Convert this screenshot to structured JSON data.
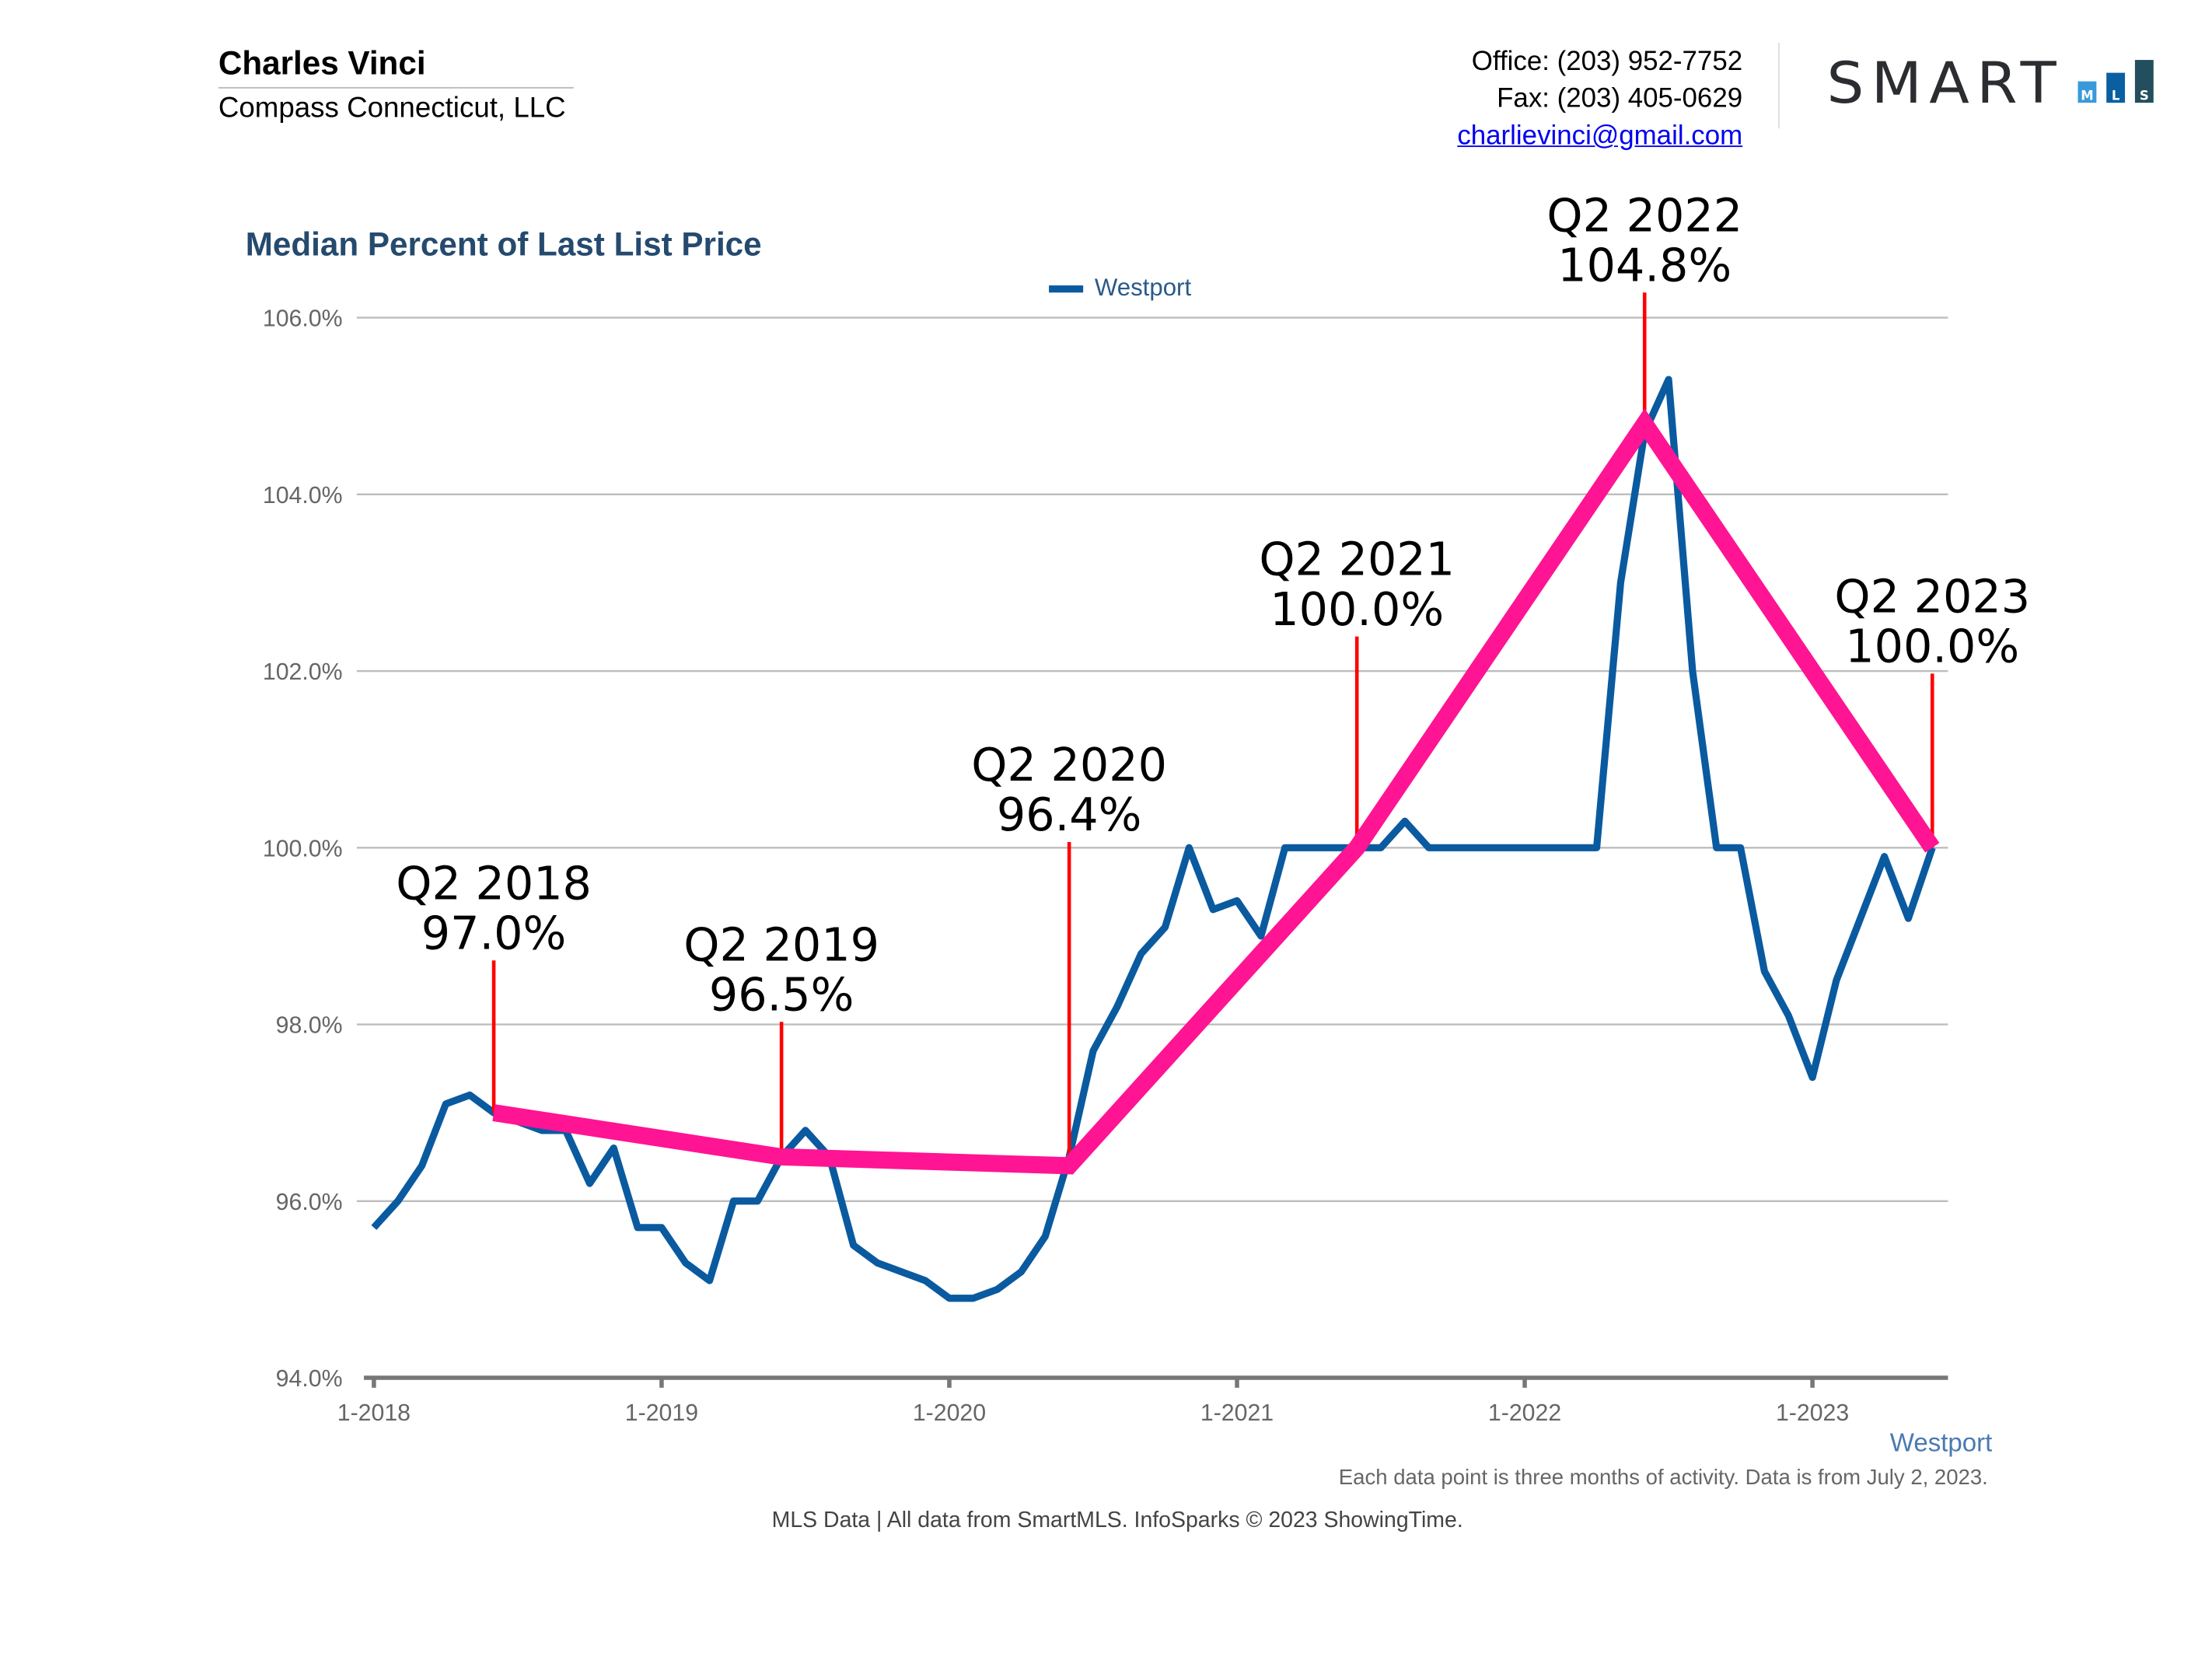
{
  "header": {
    "agent_name": "Charles Vinci",
    "company": "Compass Connecticut, LLC",
    "office": "Office: (203) 952-7752",
    "fax": "Fax: (203) 405-0629",
    "email": "charlievinci@gmail.com",
    "logo": {
      "text": "SMART",
      "sub_letters": [
        "M",
        "L",
        "S"
      ],
      "colors": [
        "#3a9ad9",
        "#0a5fa0",
        "#234e5e"
      ],
      "text_color": "#2b2d30"
    }
  },
  "chart_data": {
    "type": "line",
    "title": "Median Percent of Last List Price",
    "legend": {
      "entries": [
        "Westport"
      ],
      "placement": "top-center"
    },
    "xlabel": "",
    "ylabel": "",
    "x_tick_labels": [
      "1-2018",
      "1-2019",
      "1-2020",
      "1-2021",
      "1-2022",
      "1-2023"
    ],
    "y_tick_labels": [
      "94.0%",
      "96.0%",
      "98.0%",
      "100.0%",
      "102.0%",
      "104.0%",
      "106.0%"
    ],
    "ylim": [
      94,
      106
    ],
    "grid": true,
    "x_start": "1-2018",
    "x_frequency": "monthly",
    "series": [
      {
        "name": "Westport",
        "color": "#0a5aa0",
        "values": [
          95.7,
          96.0,
          96.4,
          97.1,
          97.2,
          97.0,
          96.9,
          96.8,
          96.8,
          96.2,
          96.6,
          95.7,
          95.7,
          95.3,
          95.1,
          96.0,
          96.0,
          96.5,
          96.8,
          96.5,
          95.5,
          95.3,
          95.2,
          95.1,
          94.9,
          94.9,
          95.0,
          95.2,
          95.6,
          96.5,
          97.7,
          98.2,
          98.8,
          99.1,
          100.0,
          99.3,
          99.4,
          99.0,
          100.0,
          100.0,
          100.0,
          100.0,
          100.0,
          100.3,
          100.0,
          100.0,
          100.0,
          100.0,
          100.0,
          100.0,
          100.0,
          100.0,
          103.0,
          104.7,
          105.3,
          102.0,
          100.0,
          100.0,
          98.6,
          98.1,
          97.4,
          98.5,
          99.2,
          99.9,
          99.2,
          100.0
        ]
      }
    ],
    "overlay": {
      "color": "#ff1493",
      "stem_color": "#ff0000",
      "points": [
        {
          "period": "Q2 2018",
          "month": "6-2018",
          "value": 97.0,
          "label": "97.0%"
        },
        {
          "period": "Q2 2019",
          "month": "6-2019",
          "value": 96.5,
          "label": "96.5%"
        },
        {
          "period": "Q2 2020",
          "month": "6-2020",
          "value": 96.4,
          "label": "96.4%"
        },
        {
          "period": "Q2 2021",
          "month": "6-2021",
          "value": 100.0,
          "label": "100.0%"
        },
        {
          "period": "Q2 2022",
          "month": "6-2022",
          "value": 104.8,
          "label": "104.8%"
        },
        {
          "period": "Q2 2023",
          "month": "6-2023",
          "value": 100.0,
          "label": "100.0%"
        }
      ]
    },
    "series_footer": "Westport",
    "note": "Each data point is three months of activity. Data is from July 2, 2023."
  },
  "footer": "MLS Data | All data from SmartMLS. InfoSparks © 2023 ShowingTime."
}
